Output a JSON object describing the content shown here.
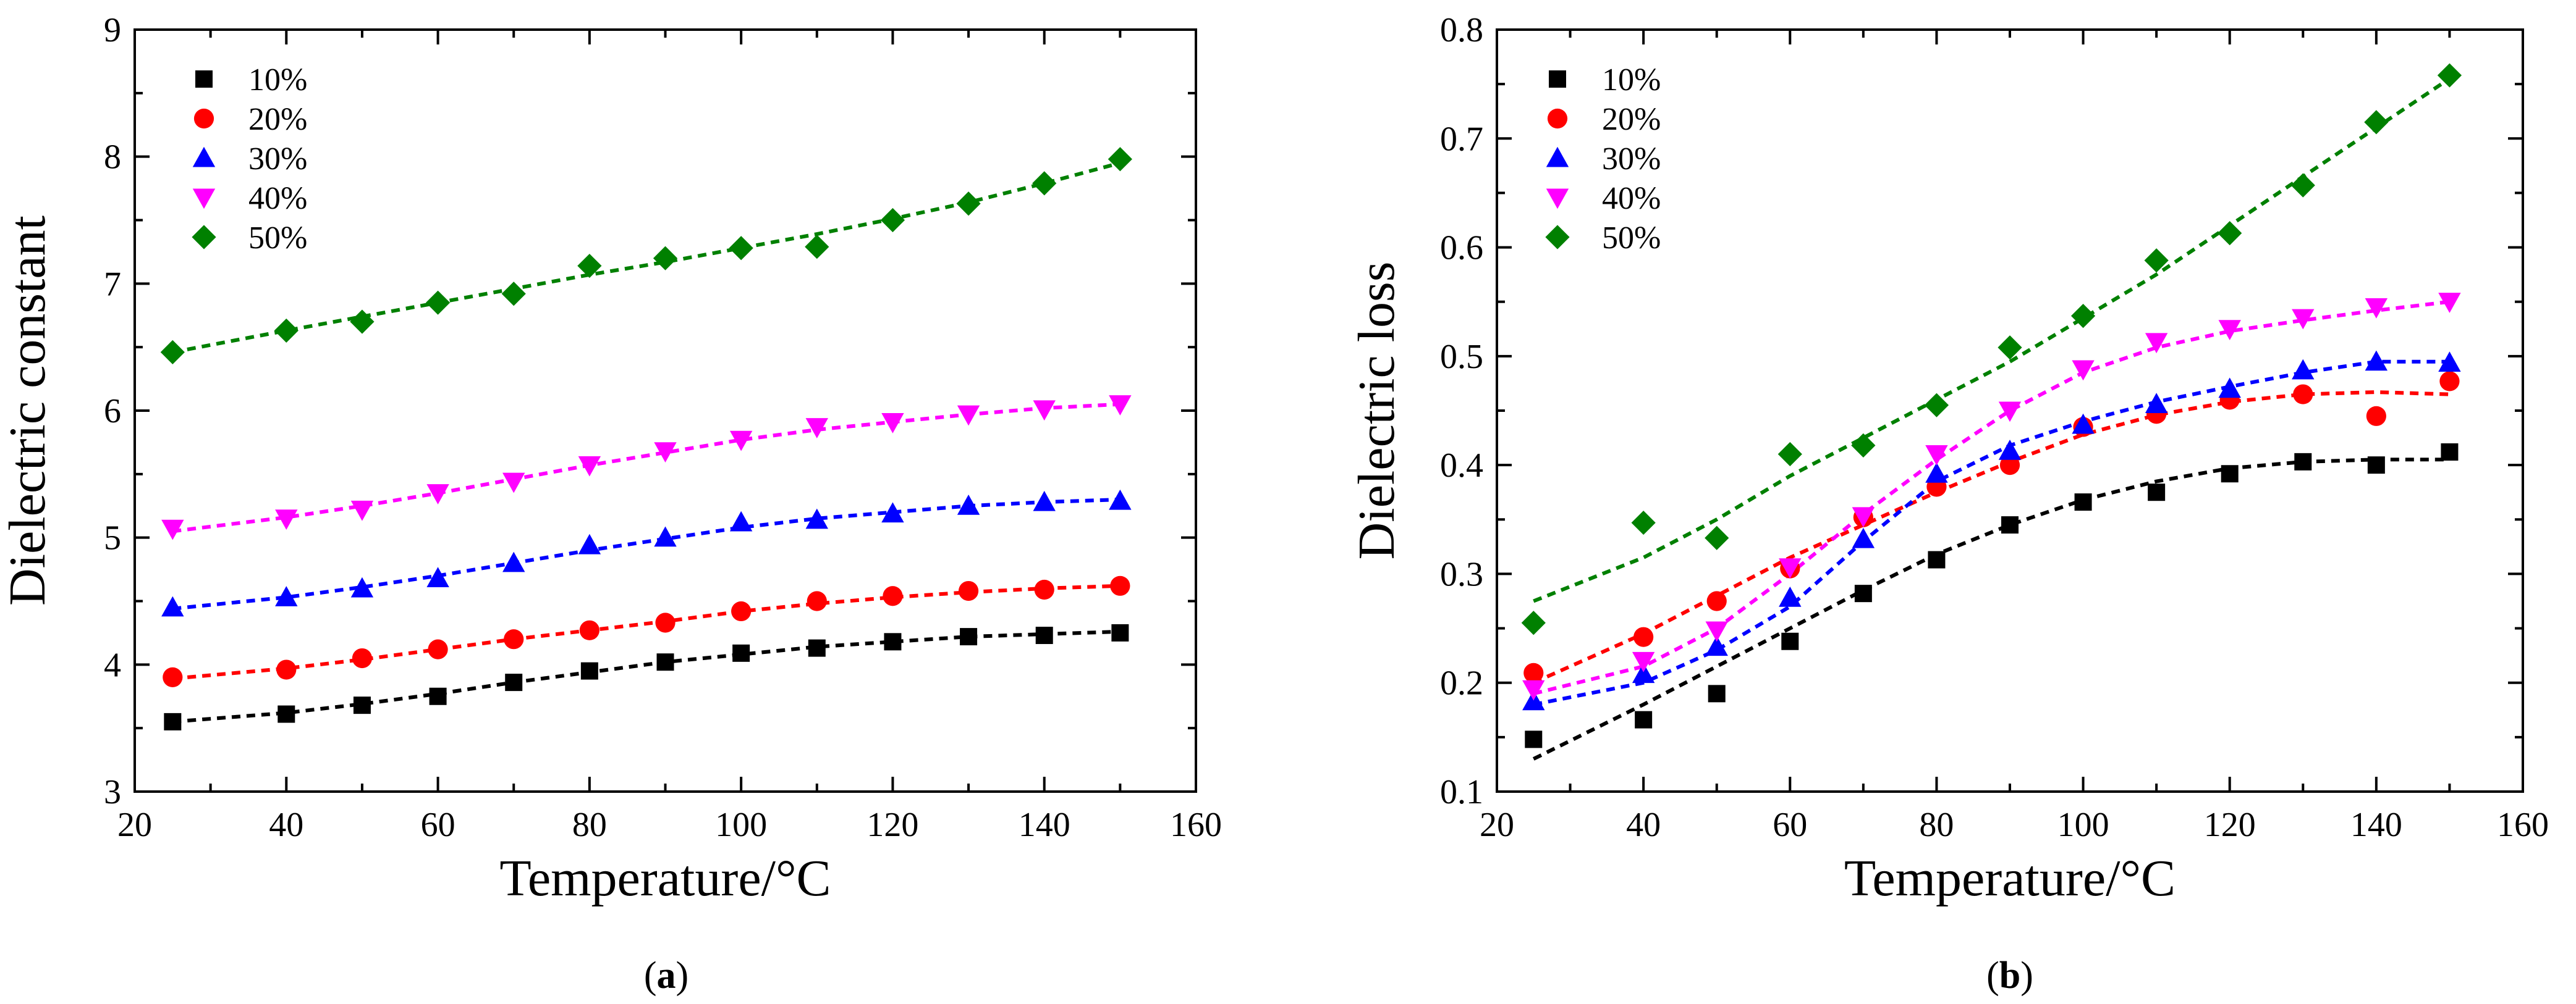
{
  "chart_data": [
    {
      "type": "scatter",
      "panel_label": "(a)",
      "xlabel": "Temperature/°C",
      "ylabel": "Dielectric constant",
      "xlim": [
        20,
        160
      ],
      "ylim": [
        3,
        9
      ],
      "xticks": [
        20,
        40,
        60,
        80,
        100,
        120,
        140,
        160
      ],
      "yticks": [
        3,
        4,
        5,
        6,
        7,
        8,
        9
      ],
      "legend": "top-left",
      "x": [
        25,
        40,
        50,
        60,
        70,
        80,
        90,
        100,
        110,
        120,
        130,
        140,
        150
      ],
      "series": [
        {
          "name": "10%",
          "marker": "square",
          "color": "#000000",
          "values": [
            3.55,
            3.61,
            3.68,
            3.75,
            3.86,
            3.95,
            4.02,
            4.09,
            4.13,
            4.18,
            4.22,
            4.23,
            4.25
          ],
          "fit": [
            3.55,
            3.62,
            3.69,
            3.77,
            3.86,
            3.94,
            4.02,
            4.08,
            4.14,
            4.18,
            4.22,
            4.24,
            4.26
          ]
        },
        {
          "name": "20%",
          "marker": "circle",
          "color": "#ff0000",
          "values": [
            3.9,
            3.96,
            4.05,
            4.12,
            4.2,
            4.27,
            4.33,
            4.42,
            4.5,
            4.54,
            4.58,
            4.59,
            4.62
          ],
          "fit": [
            3.89,
            3.97,
            4.04,
            4.12,
            4.2,
            4.27,
            4.34,
            4.42,
            4.48,
            4.53,
            4.57,
            4.6,
            4.62
          ]
        },
        {
          "name": "30%",
          "marker": "triangle-up",
          "color": "#0000ff",
          "values": [
            4.45,
            4.53,
            4.6,
            4.68,
            4.8,
            4.94,
            5.0,
            5.12,
            5.14,
            5.19,
            5.25,
            5.28,
            5.29
          ],
          "fit": [
            4.44,
            4.53,
            4.61,
            4.7,
            4.8,
            4.9,
            4.99,
            5.08,
            5.15,
            5.2,
            5.25,
            5.28,
            5.3
          ]
        },
        {
          "name": "40%",
          "marker": "triangle-down",
          "color": "#ff00ff",
          "values": [
            5.07,
            5.15,
            5.22,
            5.35,
            5.44,
            5.57,
            5.68,
            5.77,
            5.87,
            5.91,
            5.97,
            6.01,
            6.05
          ],
          "fit": [
            5.05,
            5.16,
            5.25,
            5.35,
            5.46,
            5.57,
            5.67,
            5.77,
            5.85,
            5.91,
            5.97,
            6.02,
            6.05
          ]
        },
        {
          "name": "50%",
          "marker": "diamond",
          "color": "#008000",
          "values": [
            6.46,
            6.63,
            6.7,
            6.85,
            6.92,
            7.14,
            7.2,
            7.28,
            7.29,
            7.5,
            7.63,
            7.79,
            7.98
          ],
          "fit": [
            6.46,
            6.63,
            6.74,
            6.85,
            6.96,
            7.07,
            7.17,
            7.28,
            7.39,
            7.51,
            7.64,
            7.79,
            7.95
          ]
        }
      ]
    },
    {
      "type": "scatter",
      "panel_label": "(b)",
      "xlabel": "Temperature/°C",
      "ylabel": "Dielectric loss",
      "xlim": [
        20,
        160
      ],
      "ylim": [
        0.1,
        0.8
      ],
      "xticks": [
        20,
        40,
        60,
        80,
        100,
        120,
        140,
        160
      ],
      "yticks": [
        0.1,
        0.2,
        0.3,
        0.4,
        0.5,
        0.6,
        0.7,
        0.8
      ],
      "legend": "top-left",
      "x": [
        25,
        40,
        50,
        60,
        70,
        80,
        90,
        100,
        110,
        120,
        130,
        140,
        150
      ],
      "series": [
        {
          "name": "10%",
          "marker": "square",
          "color": "#000000",
          "values": [
            0.148,
            0.166,
            0.19,
            0.238,
            0.282,
            0.313,
            0.345,
            0.366,
            0.375,
            0.392,
            0.403,
            0.4,
            0.412
          ],
          "fit": [
            0.13,
            0.18,
            0.215,
            0.25,
            0.285,
            0.318,
            0.345,
            0.368,
            0.385,
            0.397,
            0.403,
            0.405,
            0.405
          ]
        },
        {
          "name": "20%",
          "marker": "circle",
          "color": "#ff0000",
          "values": [
            0.209,
            0.242,
            0.275,
            0.305,
            0.352,
            0.38,
            0.4,
            0.435,
            0.447,
            0.46,
            0.465,
            0.445,
            0.477
          ],
          "fit": [
            0.2,
            0.245,
            0.28,
            0.315,
            0.345,
            0.375,
            0.403,
            0.428,
            0.446,
            0.458,
            0.465,
            0.467,
            0.465
          ]
        },
        {
          "name": "30%",
          "marker": "triangle-up",
          "color": "#0000ff",
          "values": [
            0.183,
            0.208,
            0.233,
            0.278,
            0.332,
            0.392,
            0.413,
            0.437,
            0.456,
            0.47,
            0.487,
            0.495,
            0.494
          ],
          "fit": [
            0.18,
            0.2,
            0.23,
            0.27,
            0.33,
            0.385,
            0.418,
            0.44,
            0.458,
            0.472,
            0.485,
            0.495,
            0.495
          ]
        },
        {
          "name": "40%",
          "marker": "triangle-down",
          "color": "#ff00ff",
          "values": [
            0.194,
            0.22,
            0.248,
            0.306,
            0.353,
            0.41,
            0.45,
            0.488,
            0.513,
            0.525,
            0.535,
            0.545,
            0.55
          ],
          "fit": [
            0.19,
            0.215,
            0.25,
            0.3,
            0.355,
            0.405,
            0.45,
            0.485,
            0.508,
            0.523,
            0.533,
            0.542,
            0.55
          ]
        },
        {
          "name": "50%",
          "marker": "diamond",
          "color": "#008000",
          "values": [
            0.255,
            0.347,
            0.333,
            0.41,
            0.418,
            0.455,
            0.508,
            0.537,
            0.588,
            0.613,
            0.657,
            0.715,
            0.758
          ],
          "fit": [
            0.275,
            0.315,
            0.35,
            0.39,
            0.425,
            0.46,
            0.495,
            0.535,
            0.575,
            0.62,
            0.665,
            0.71,
            0.755
          ]
        }
      ]
    }
  ]
}
